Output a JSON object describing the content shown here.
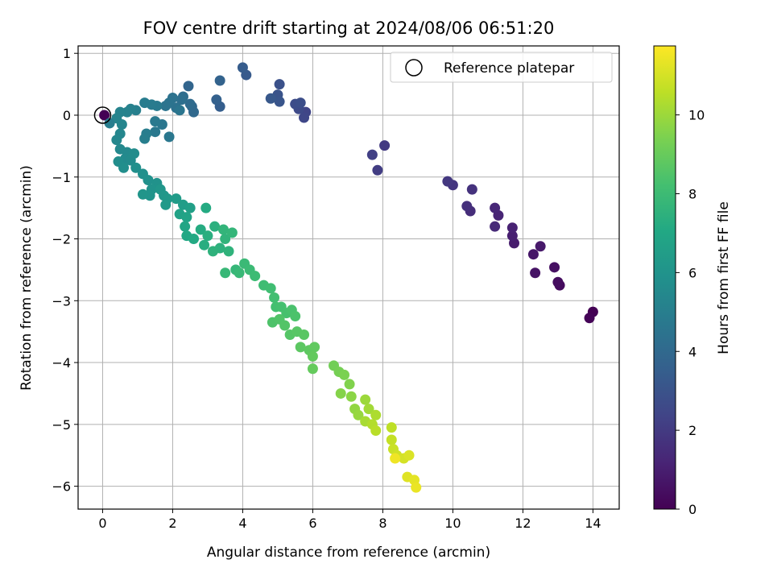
{
  "chart_data": {
    "type": "scatter",
    "title": "FOV centre drift starting at 2024/08/06 06:51:20",
    "xlabel": "Angular distance from reference (arcmin)",
    "ylabel": "Rotation from reference (arcmin)",
    "xlim": [
      -0.7,
      14.75
    ],
    "ylim": [
      -6.37,
      1.12
    ],
    "xticks": [
      0,
      2,
      4,
      6,
      8,
      10,
      12,
      14
    ],
    "yticks": [
      -6,
      -5,
      -4,
      -3,
      -2,
      -1,
      0,
      1
    ],
    "grid": true,
    "legend": {
      "placement": "top-right",
      "entries": [
        "Reference platepar"
      ]
    },
    "reference_point": {
      "x": 0,
      "y": 0
    },
    "colorbar": {
      "label": "Hours from first FF file",
      "colormap": "viridis",
      "range": [
        0,
        11.75
      ],
      "ticks": [
        0,
        2,
        4,
        6,
        8,
        10
      ]
    },
    "points": [
      [
        14.0,
        -3.18,
        0.0
      ],
      [
        13.9,
        -3.28,
        0.1
      ],
      [
        13.05,
        -2.75,
        0.35
      ],
      [
        13.0,
        -2.7,
        0.4
      ],
      [
        12.9,
        -2.46,
        0.5
      ],
      [
        12.35,
        -2.55,
        0.6
      ],
      [
        12.3,
        -2.25,
        0.7
      ],
      [
        12.5,
        -2.12,
        0.8
      ],
      [
        11.75,
        -2.07,
        0.9
      ],
      [
        11.7,
        -1.95,
        1.0
      ],
      [
        11.7,
        -1.82,
        1.1
      ],
      [
        11.3,
        -1.62,
        1.2
      ],
      [
        11.2,
        -1.5,
        1.3
      ],
      [
        11.2,
        -1.8,
        1.4
      ],
      [
        10.5,
        -1.55,
        1.5
      ],
      [
        10.4,
        -1.47,
        1.6
      ],
      [
        10.55,
        -1.2,
        1.7
      ],
      [
        10.0,
        -1.13,
        1.8
      ],
      [
        9.85,
        -1.07,
        1.9
      ],
      [
        8.05,
        -0.49,
        2.0
      ],
      [
        7.85,
        -0.89,
        2.1
      ],
      [
        7.7,
        -0.64,
        2.2
      ],
      [
        5.8,
        0.05,
        2.4
      ],
      [
        5.75,
        -0.04,
        2.5
      ],
      [
        5.6,
        0.1,
        2.6
      ],
      [
        5.5,
        0.18,
        2.7
      ],
      [
        5.65,
        0.2,
        2.8
      ],
      [
        5.05,
        0.5,
        2.9
      ],
      [
        5.0,
        0.33,
        3.0
      ],
      [
        5.05,
        0.22,
        3.1
      ],
      [
        4.8,
        0.27,
        3.2
      ],
      [
        4.1,
        0.65,
        3.3
      ],
      [
        4.0,
        0.77,
        3.4
      ],
      [
        3.35,
        0.14,
        3.5
      ],
      [
        3.25,
        0.25,
        3.6
      ],
      [
        3.35,
        0.56,
        3.7
      ],
      [
        2.45,
        0.47,
        3.8
      ],
      [
        2.55,
        0.14,
        3.9
      ],
      [
        2.6,
        0.05,
        4.0
      ],
      [
        2.5,
        0.18,
        4.1
      ],
      [
        2.3,
        0.3,
        4.2
      ],
      [
        2.25,
        0.25,
        4.3
      ],
      [
        2.1,
        0.12,
        4.35
      ],
      [
        2.0,
        0.28,
        4.4
      ],
      [
        1.9,
        0.2,
        4.45
      ],
      [
        1.8,
        0.15,
        4.5
      ],
      [
        2.2,
        0.08,
        4.55
      ],
      [
        1.7,
        -0.15,
        4.6
      ],
      [
        1.9,
        -0.35,
        4.65
      ],
      [
        1.5,
        -0.27,
        4.7
      ],
      [
        1.5,
        -0.1,
        4.75
      ],
      [
        1.55,
        0.15,
        4.8
      ],
      [
        1.4,
        0.17,
        4.85
      ],
      [
        1.2,
        0.2,
        4.9
      ],
      [
        1.25,
        -0.3,
        4.95
      ],
      [
        1.2,
        -0.38,
        5.0
      ],
      [
        0.95,
        0.08,
        5.05
      ],
      [
        0.8,
        0.1,
        5.1
      ],
      [
        0.7,
        0.05,
        5.15
      ],
      [
        0.5,
        0.05,
        5.2
      ],
      [
        0.4,
        -0.05,
        5.25
      ],
      [
        0.55,
        -0.15,
        5.3
      ],
      [
        0.5,
        -0.3,
        5.35
      ],
      [
        0.4,
        -0.4,
        5.4
      ],
      [
        0.5,
        -0.55,
        5.45
      ],
      [
        0.7,
        -0.6,
        5.5
      ],
      [
        0.65,
        -0.7,
        5.55
      ],
      [
        0.8,
        -0.73,
        5.6
      ],
      [
        0.9,
        -0.62,
        5.65
      ],
      [
        0.45,
        -0.75,
        5.7
      ],
      [
        0.6,
        -0.85,
        5.75
      ],
      [
        0.95,
        -0.85,
        5.8
      ],
      [
        1.15,
        -0.95,
        5.85
      ],
      [
        1.3,
        -1.05,
        5.9
      ],
      [
        1.55,
        -1.1,
        5.95
      ],
      [
        1.4,
        -1.2,
        6.0
      ],
      [
        1.35,
        -1.3,
        6.05
      ],
      [
        1.15,
        -1.28,
        6.1
      ],
      [
        1.65,
        -1.2,
        6.15
      ],
      [
        1.75,
        -1.3,
        6.2
      ],
      [
        1.85,
        -1.35,
        6.25
      ],
      [
        1.8,
        -1.45,
        6.3
      ],
      [
        2.1,
        -1.35,
        6.4
      ],
      [
        2.3,
        -1.45,
        6.5
      ],
      [
        2.5,
        -1.5,
        6.6
      ],
      [
        2.2,
        -1.6,
        6.7
      ],
      [
        2.4,
        -1.65,
        6.8
      ],
      [
        2.35,
        -1.8,
        6.9
      ],
      [
        2.4,
        -1.95,
        7.0
      ],
      [
        2.6,
        -2.0,
        7.1
      ],
      [
        2.95,
        -1.5,
        7.15
      ],
      [
        2.8,
        -1.85,
        7.2
      ],
      [
        2.9,
        -2.1,
        7.3
      ],
      [
        3.0,
        -1.95,
        7.35
      ],
      [
        3.2,
        -1.8,
        7.4
      ],
      [
        3.35,
        -2.15,
        7.45
      ],
      [
        3.15,
        -2.2,
        7.5
      ],
      [
        3.6,
        -2.2,
        7.55
      ],
      [
        3.5,
        -2.0,
        7.6
      ],
      [
        3.45,
        -1.85,
        7.65
      ],
      [
        3.7,
        -1.9,
        7.7
      ],
      [
        3.8,
        -2.5,
        7.75
      ],
      [
        3.5,
        -2.55,
        7.8
      ],
      [
        3.9,
        -2.55,
        7.85
      ],
      [
        4.05,
        -2.4,
        7.9
      ],
      [
        4.2,
        -2.5,
        7.95
      ],
      [
        4.35,
        -2.6,
        8.0
      ],
      [
        4.6,
        -2.75,
        8.05
      ],
      [
        4.8,
        -2.8,
        8.1
      ],
      [
        4.9,
        -2.95,
        8.15
      ],
      [
        4.95,
        -3.1,
        8.2
      ],
      [
        5.1,
        -3.1,
        8.25
      ],
      [
        5.25,
        -3.2,
        8.3
      ],
      [
        5.4,
        -3.15,
        8.35
      ],
      [
        5.5,
        -3.25,
        8.4
      ],
      [
        4.85,
        -3.35,
        8.45
      ],
      [
        5.05,
        -3.3,
        8.5
      ],
      [
        5.2,
        -3.4,
        8.55
      ],
      [
        5.35,
        -3.55,
        8.6
      ],
      [
        5.55,
        -3.5,
        8.65
      ],
      [
        5.75,
        -3.55,
        8.7
      ],
      [
        5.65,
        -3.75,
        8.75
      ],
      [
        5.9,
        -3.8,
        8.8
      ],
      [
        6.05,
        -3.75,
        8.85
      ],
      [
        6.0,
        -3.9,
        8.9
      ],
      [
        6.0,
        -4.1,
        8.95
      ],
      [
        6.6,
        -4.05,
        9.2
      ],
      [
        6.75,
        -4.15,
        9.3
      ],
      [
        6.9,
        -4.2,
        9.4
      ],
      [
        7.05,
        -4.35,
        9.5
      ],
      [
        6.8,
        -4.5,
        9.6
      ],
      [
        7.1,
        -4.55,
        9.7
      ],
      [
        7.2,
        -4.75,
        9.8
      ],
      [
        7.3,
        -4.85,
        9.9
      ],
      [
        7.5,
        -4.6,
        10.0
      ],
      [
        7.6,
        -4.75,
        10.1
      ],
      [
        7.5,
        -4.95,
        10.2
      ],
      [
        7.8,
        -4.85,
        10.3
      ],
      [
        7.7,
        -5.0,
        10.4
      ],
      [
        7.8,
        -5.1,
        10.5
      ],
      [
        8.25,
        -5.05,
        10.6
      ],
      [
        8.25,
        -5.25,
        10.7
      ],
      [
        8.3,
        -5.4,
        10.8
      ],
      [
        8.4,
        -5.5,
        10.9
      ],
      [
        8.6,
        -5.55,
        11.0
      ],
      [
        8.75,
        -5.5,
        11.1
      ],
      [
        8.7,
        -5.85,
        11.2
      ],
      [
        8.9,
        -5.9,
        11.3
      ],
      [
        8.95,
        -6.02,
        11.4
      ],
      [
        8.35,
        -5.55,
        11.5
      ],
      [
        0.05,
        0.0,
        0.0
      ],
      [
        0.2,
        -0.13,
        4.95
      ]
    ]
  }
}
